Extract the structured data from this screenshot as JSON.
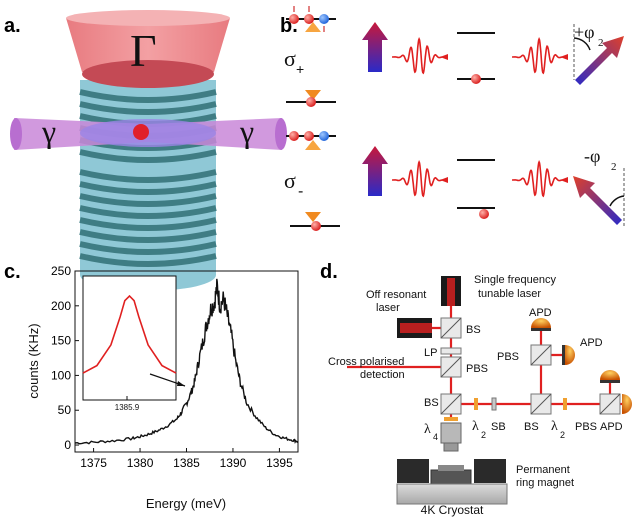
{
  "panels": {
    "a": {
      "label": "a.",
      "gamma_big": "Γ",
      "gamma_left": "γ",
      "gamma_right": "γ"
    },
    "b": {
      "label": "b.",
      "sigma_plus": "σ",
      "sigma_plus_sub": "+",
      "sigma_minus": "σ",
      "sigma_minus_sub": "-",
      "phase_plus": "+φ",
      "phase_minus": "-φ",
      "phase_den": "2"
    },
    "c": {
      "label": "c.",
      "inset_tick": "1385.9"
    },
    "d": {
      "label": "d.",
      "single_freq": "Single frequency",
      "tunable": "tunable laser",
      "off_resonant": "Off resonant",
      "laser": "laser",
      "cross_pol": "Cross polarised",
      "detection": "detection",
      "bs1": "BS",
      "lp": "LP",
      "pbs1": "PBS",
      "bs2": "BS",
      "pbs_upper": "PBS",
      "apd_top": "APD",
      "apd_mid": "APD",
      "sb": "SB",
      "bs3": "BS",
      "pbs_lower": "PBS",
      "apd_right": "APD",
      "lambda": "λ",
      "quarter_den": "4",
      "half_den": "2",
      "magnet_1": "Permanent",
      "magnet_2": "ring magnet",
      "cryostat": "4K Cryostat"
    }
  },
  "chart_data": {
    "type": "line",
    "xlabel": "Energy (meV)",
    "ylabel": "counts (KHz)",
    "xlim": [
      1373,
      1397
    ],
    "ylim": [
      -10,
      250
    ],
    "xticks": [
      "1375",
      "1380",
      "1385",
      "1390",
      "1395"
    ],
    "yticks": [
      "0",
      "50",
      "100",
      "150",
      "200",
      "250"
    ],
    "series": [
      {
        "x": [
          1373,
          1375,
          1377,
          1379,
          1380,
          1381,
          1382,
          1383,
          1384,
          1384.5,
          1385,
          1385.5,
          1385.9,
          1386.3,
          1386.8,
          1387.2,
          1387.6,
          1388,
          1388.3,
          1388.6,
          1389,
          1389.4,
          1389.8,
          1390.3,
          1390.8,
          1391.5,
          1392.5,
          1393.5,
          1394.5,
          1395.5,
          1396.5,
          1397
        ],
        "y": [
          3,
          4,
          6,
          9,
          12,
          16,
          21,
          28,
          38,
          48,
          60,
          75,
          92,
          120,
          150,
          175,
          195,
          205,
          228,
          200,
          210,
          185,
          160,
          120,
          90,
          60,
          40,
          25,
          15,
          10,
          7,
          5
        ]
      }
    ],
    "inset": {
      "xtick": "1385.9",
      "x": [
        1384.9,
        1385.2,
        1385.5,
        1385.7,
        1385.8,
        1385.9,
        1386.0,
        1386.1,
        1386.3,
        1386.6,
        1386.9
      ],
      "y": [
        0.18,
        0.26,
        0.48,
        0.78,
        0.95,
        1.0,
        0.95,
        0.78,
        0.48,
        0.26,
        0.18
      ]
    }
  }
}
